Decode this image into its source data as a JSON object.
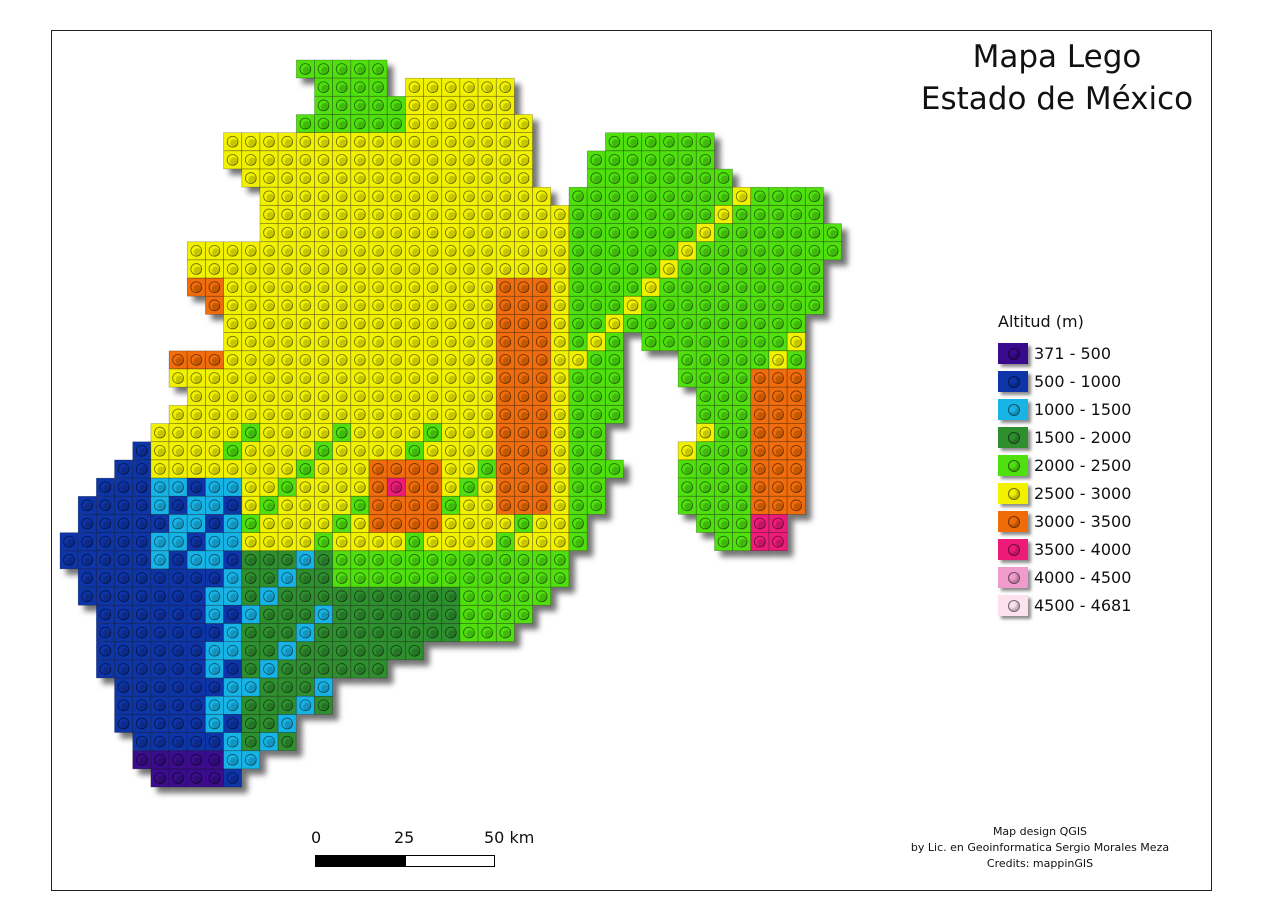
{
  "title": {
    "line1": "Mapa Lego",
    "line2": "Estado de México"
  },
  "legend": {
    "title": "Altitud (m)",
    "classes": [
      {
        "label": "371 - 500",
        "color": "#3a0a8c"
      },
      {
        "label": "500 - 1000",
        "color": "#0d35a8"
      },
      {
        "label": "1000 - 1500",
        "color": "#19b4e6"
      },
      {
        "label": "1500 - 2000",
        "color": "#2f8f2f"
      },
      {
        "label": "2000 - 2500",
        "color": "#4fe010"
      },
      {
        "label": "2500 - 3000",
        "color": "#f2f200"
      },
      {
        "label": "3000 - 3500",
        "color": "#f06c08"
      },
      {
        "label": "3500 - 4000",
        "color": "#ee1a78"
      },
      {
        "label": "4000 - 4500",
        "color": "#ef9ccc"
      },
      {
        "label": "4500 - 4681",
        "color": "#fbe2ee"
      }
    ]
  },
  "scale_bar": {
    "ticks": [
      "0",
      "25",
      "50 km"
    ]
  },
  "credits": {
    "line1": "Map design QGIS",
    "line2": "by Lic. en Geoinformatica Sergio Morales Meza",
    "line3": "Credits: mappinGIS"
  },
  "map": {
    "style": "lego bricks",
    "region": "Estado de México"
  }
}
